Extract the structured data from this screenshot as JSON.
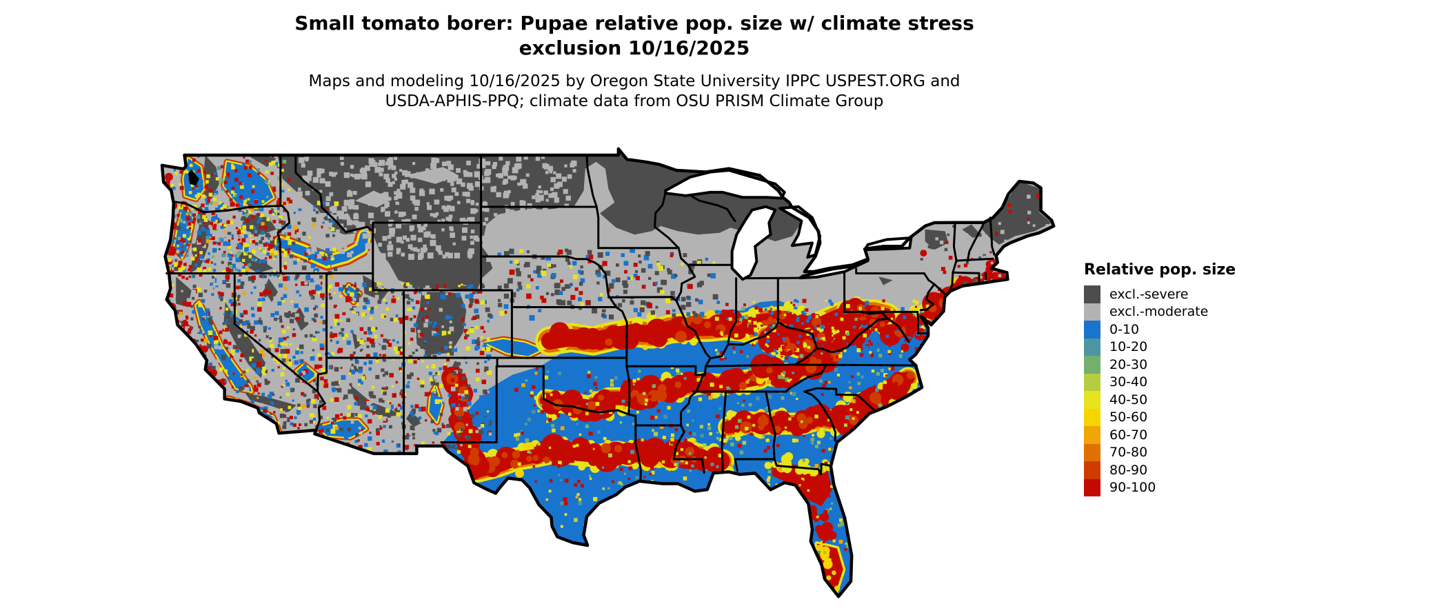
{
  "title": {
    "line1": "Small tomato borer: Pupae relative pop. size w/ climate stress",
    "line2": "exclusion 10/16/2025"
  },
  "subtitle": {
    "line1": "Maps and modeling 10/16/2025 by Oregon State University IPPC USPEST.ORG and",
    "line2": "USDA-APHIS-PPQ; climate data from OSU PRISM Climate Group"
  },
  "legend": {
    "title": "Relative pop. size",
    "items": [
      {
        "label": "excl.-severe",
        "color": "#4d4d4d"
      },
      {
        "label": "excl.-moderate",
        "color": "#b3b3b3"
      },
      {
        "label": "0-10",
        "color": "#1874cd"
      },
      {
        "label": "10-20",
        "color": "#4e95a3"
      },
      {
        "label": "20-30",
        "color": "#75af6e"
      },
      {
        "label": "30-40",
        "color": "#b5cd3f"
      },
      {
        "label": "40-50",
        "color": "#e6e41c"
      },
      {
        "label": "50-60",
        "color": "#f5d500"
      },
      {
        "label": "60-70",
        "color": "#efa606"
      },
      {
        "label": "70-80",
        "color": "#e17000"
      },
      {
        "label": "80-90",
        "color": "#d03c00"
      },
      {
        "label": "90-100",
        "color": "#c40a00"
      }
    ]
  },
  "map": {
    "region": "Contiguous United States",
    "water_color": "#ffffff",
    "border_color": "#000000"
  }
}
